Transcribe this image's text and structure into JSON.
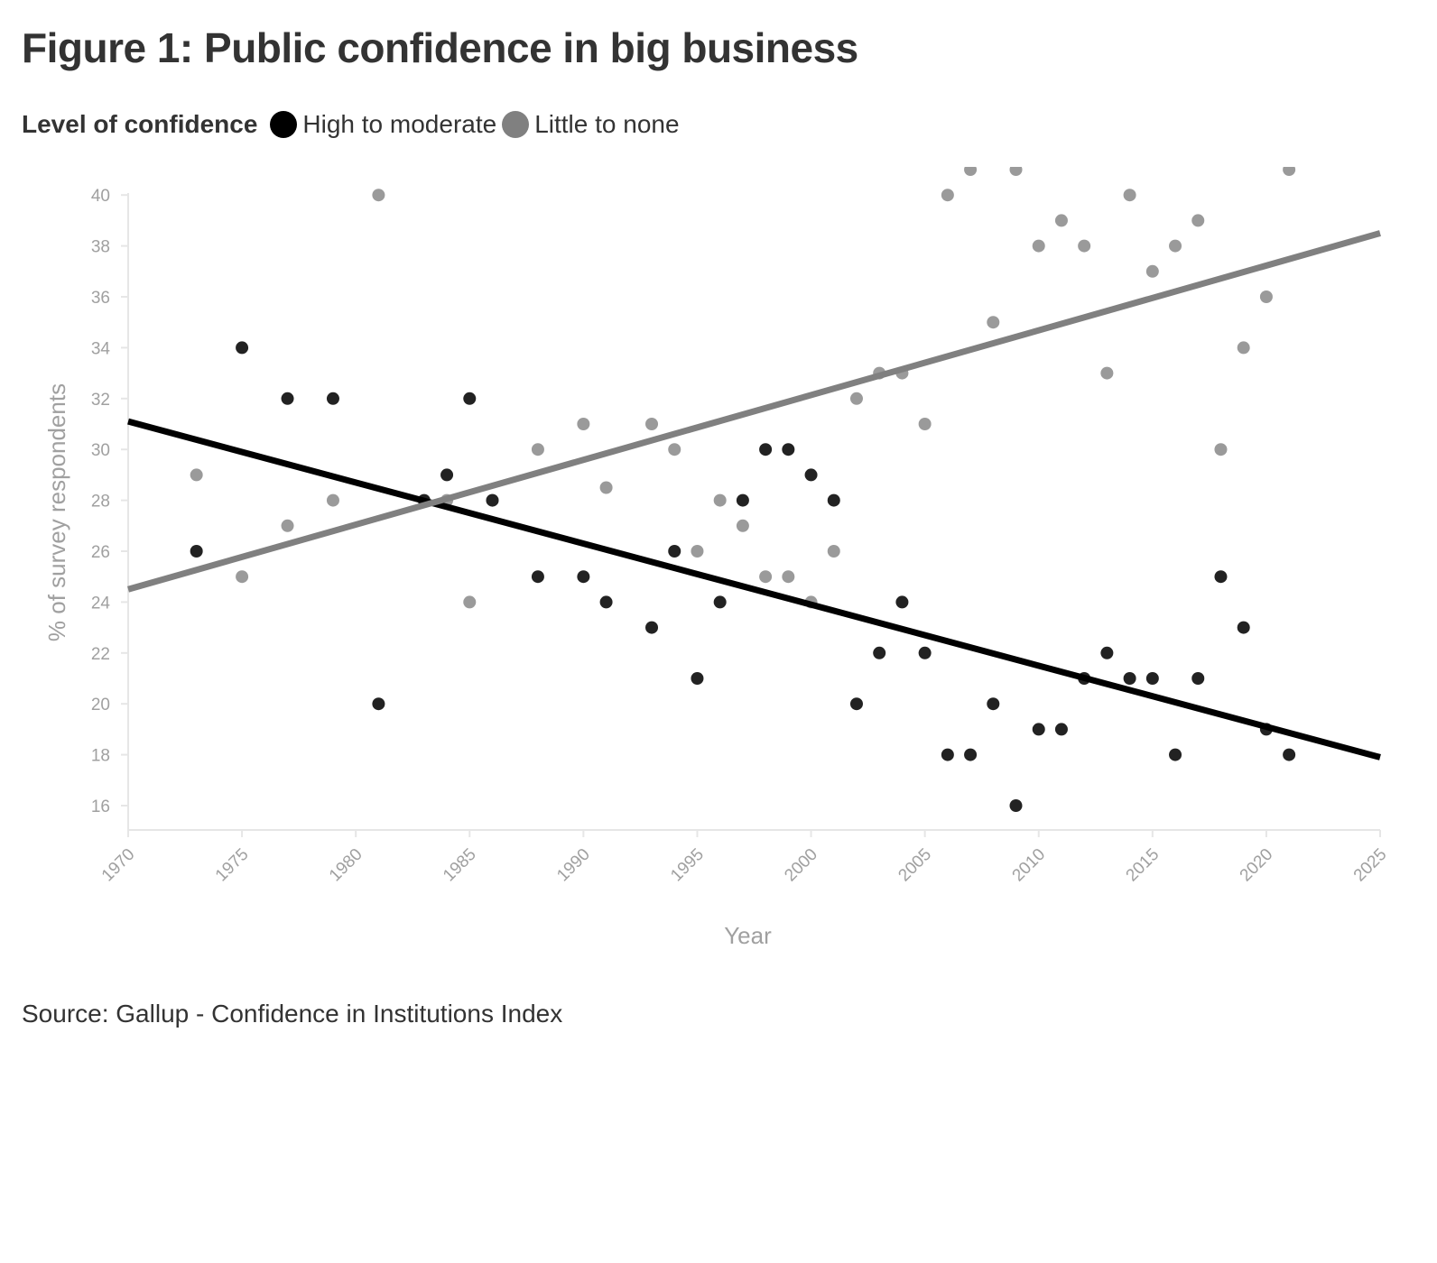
{
  "title": "Figure 1: Public confidence in big business",
  "legend": {
    "title": "Level of confidence",
    "items": [
      {
        "label": "High to moderate",
        "color": "#000000"
      },
      {
        "label": "Little to none",
        "color": "#808080"
      }
    ]
  },
  "source": "Source: Gallup - Confidence in Institutions Index",
  "chart_data": {
    "type": "scatter",
    "xlabel": "Year",
    "ylabel": "% of survey respondents",
    "xlim": [
      1970,
      2025
    ],
    "ylim": [
      15,
      40
    ],
    "x_ticks": [
      1970,
      1975,
      1980,
      1985,
      1990,
      1995,
      2000,
      2005,
      2010,
      2015,
      2020,
      2025
    ],
    "y_ticks": [
      16,
      18,
      20,
      22,
      24,
      26,
      28,
      30,
      32,
      34,
      36,
      38,
      40
    ],
    "grid": false,
    "legend_position": "top-left",
    "series": [
      {
        "name": "High to moderate",
        "color": "#222222",
        "points": [
          [
            1973,
            26
          ],
          [
            1975,
            34
          ],
          [
            1977,
            32
          ],
          [
            1979,
            32
          ],
          [
            1981,
            20
          ],
          [
            1983,
            28
          ],
          [
            1984,
            29
          ],
          [
            1985,
            32
          ],
          [
            1986,
            28
          ],
          [
            1988,
            25
          ],
          [
            1990,
            25
          ],
          [
            1991,
            24
          ],
          [
            1993,
            23
          ],
          [
            1994,
            26
          ],
          [
            1995,
            21
          ],
          [
            1996,
            24
          ],
          [
            1997,
            28
          ],
          [
            1998,
            30
          ],
          [
            1999,
            30
          ],
          [
            2000,
            29
          ],
          [
            2001,
            28
          ],
          [
            2002,
            20
          ],
          [
            2003,
            22
          ],
          [
            2004,
            24
          ],
          [
            2005,
            22
          ],
          [
            2006,
            18
          ],
          [
            2007,
            18
          ],
          [
            2008,
            20
          ],
          [
            2009,
            16
          ],
          [
            2010,
            19
          ],
          [
            2011,
            19
          ],
          [
            2012,
            21
          ],
          [
            2013,
            22
          ],
          [
            2014,
            21
          ],
          [
            2015,
            21
          ],
          [
            2016,
            18
          ],
          [
            2017,
            21
          ],
          [
            2018,
            25
          ],
          [
            2019,
            23
          ],
          [
            2020,
            19
          ],
          [
            2021,
            18
          ]
        ],
        "trend": {
          "color": "#000000",
          "start": [
            1970,
            31.1
          ],
          "end": [
            2025,
            17.9
          ]
        }
      },
      {
        "name": "Little to none",
        "color": "#9a9a9a",
        "points": [
          [
            1973,
            29
          ],
          [
            1975,
            25
          ],
          [
            1977,
            27
          ],
          [
            1979,
            28
          ],
          [
            1981,
            40
          ],
          [
            1984,
            28
          ],
          [
            1985,
            24
          ],
          [
            1986,
            28
          ],
          [
            1988,
            30
          ],
          [
            1990,
            31
          ],
          [
            1991,
            28.5
          ],
          [
            1993,
            31
          ],
          [
            1994,
            30
          ],
          [
            1995,
            26
          ],
          [
            1996,
            28
          ],
          [
            1997,
            27
          ],
          [
            1998,
            25
          ],
          [
            1999,
            25
          ],
          [
            2000,
            24
          ],
          [
            2001,
            26
          ],
          [
            2002,
            32
          ],
          [
            2003,
            33
          ],
          [
            2004,
            33
          ],
          [
            2005,
            31
          ],
          [
            2006,
            40
          ],
          [
            2007,
            41
          ],
          [
            2008,
            35
          ],
          [
            2009,
            41
          ],
          [
            2010,
            38
          ],
          [
            2011,
            39
          ],
          [
            2012,
            38
          ],
          [
            2013,
            33
          ],
          [
            2014,
            40
          ],
          [
            2015,
            37
          ],
          [
            2016,
            38
          ],
          [
            2017,
            39
          ],
          [
            2018,
            30
          ],
          [
            2019,
            34
          ],
          [
            2020,
            36
          ],
          [
            2021,
            41
          ]
        ],
        "trend": {
          "color": "#808080",
          "start": [
            1970,
            24.5
          ],
          "end": [
            2025,
            38.5
          ]
        }
      }
    ]
  }
}
